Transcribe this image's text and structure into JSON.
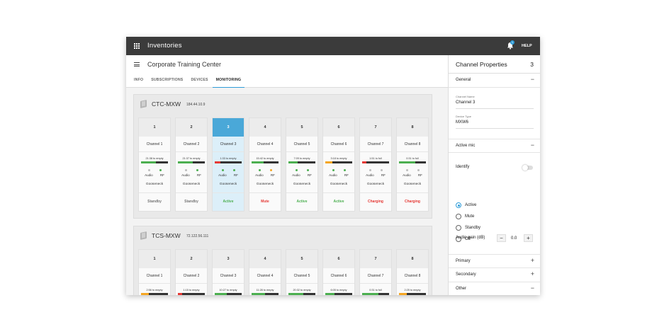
{
  "topbar": {
    "title": "Inventories",
    "notification_count": "1",
    "help_label": "HELP"
  },
  "left": {
    "page_title": "Corporate Training Center",
    "tabs": [
      {
        "label": "INFO",
        "active": false
      },
      {
        "label": "SUBSCRIPTIONS",
        "active": false
      },
      {
        "label": "DEVICES",
        "active": false
      },
      {
        "label": "MONITORING",
        "active": true
      }
    ]
  },
  "devices": [
    {
      "name": "CTC-MXW",
      "ip": "184.44.10.9",
      "channels": [
        {
          "num": "1",
          "name": "Channel 1",
          "battery_text": "21:38 to empty",
          "battery_level": 0.55,
          "battery_color": "#4caf50",
          "audio_dot": "#bdbdbd",
          "rf_dot": "#4caf50",
          "audio_label": "Audio",
          "rf_label": "RF",
          "mic": "Gooseneck",
          "status": "Standby",
          "status_color": "#777777",
          "selected": false
        },
        {
          "num": "2",
          "name": "Channel 2",
          "battery_text": "21:37 to empty",
          "battery_level": 0.55,
          "battery_color": "#4caf50",
          "audio_dot": "#bdbdbd",
          "rf_dot": "#4caf50",
          "audio_label": "Audio",
          "rf_label": "RF",
          "mic": "Gooseneck",
          "status": "Standby",
          "status_color": "#777777",
          "selected": false
        },
        {
          "num": "3",
          "name": "Channel 3",
          "battery_text": "1:33 to empty",
          "battery_level": 0.2,
          "battery_color": "#e53935",
          "audio_dot": "#4caf50",
          "rf_dot": "#4caf50",
          "audio_label": "Audio",
          "rf_label": "RF",
          "mic": "Gooseneck",
          "status": "Active",
          "status_color": "#4caf50",
          "selected": true
        },
        {
          "num": "4",
          "name": "Channel 4",
          "battery_text": "15:42 to empty",
          "battery_level": 0.45,
          "battery_color": "#4caf50",
          "audio_dot": "#4caf50",
          "rf_dot": "#f5a623",
          "audio_label": "Audio",
          "rf_label": "RF",
          "mic": "Gooseneck",
          "status": "Mute",
          "status_color": "#e53935",
          "selected": false
        },
        {
          "num": "5",
          "name": "Channel 5",
          "battery_text": "7:09 to empty",
          "battery_level": 0.35,
          "battery_color": "#4caf50",
          "audio_dot": "#4caf50",
          "rf_dot": "#4caf50",
          "audio_label": "Audio",
          "rf_label": "RF",
          "mic": "Gooseneck",
          "status": "Active",
          "status_color": "#4caf50",
          "selected": false
        },
        {
          "num": "6",
          "name": "Channel 6",
          "battery_text": "3:18 to empty",
          "battery_level": 0.25,
          "battery_color": "#f5a623",
          "audio_dot": "#4caf50",
          "rf_dot": "#4caf50",
          "audio_label": "Audio",
          "rf_label": "RF",
          "mic": "Gooseneck",
          "status": "Active",
          "status_color": "#4caf50",
          "selected": false
        },
        {
          "num": "7",
          "name": "Channel 7",
          "battery_text": "1:51 to full",
          "battery_level": 0.15,
          "battery_color": "#e53935",
          "audio_dot": "#bdbdbd",
          "rf_dot": "#bdbdbd",
          "audio_label": "Audio",
          "rf_label": "RF",
          "mic": "Gooseneck",
          "status": "Charging",
          "status_color": "#e53935",
          "selected": false
        },
        {
          "num": "8",
          "name": "Channel 8",
          "battery_text": "0:31 to full",
          "battery_level": 0.6,
          "battery_color": "#4caf50",
          "audio_dot": "#bdbdbd",
          "rf_dot": "#bdbdbd",
          "audio_label": "Audio",
          "rf_label": "RF",
          "mic": "Gooseneck",
          "status": "Charging",
          "status_color": "#e53935",
          "selected": false
        }
      ]
    },
    {
      "name": "TCS-MXW",
      "ip": "72.122.56.111",
      "channels": [
        {
          "num": "1",
          "name": "Channel 1",
          "battery_text": "2:56 to empty",
          "battery_level": 0.3,
          "battery_color": "#f5a623",
          "selected": false
        },
        {
          "num": "2",
          "name": "Channel 2",
          "battery_text": "1:15 to empty",
          "battery_level": 0.15,
          "battery_color": "#e53935",
          "selected": false
        },
        {
          "num": "3",
          "name": "Channel 3",
          "battery_text": "10:27 to empty",
          "battery_level": 0.45,
          "battery_color": "#4caf50",
          "selected": false
        },
        {
          "num": "4",
          "name": "Channel 4",
          "battery_text": "11:28 to empty",
          "battery_level": 0.5,
          "battery_color": "#4caf50",
          "selected": false
        },
        {
          "num": "5",
          "name": "Channel 5",
          "battery_text": "20:32 to empty",
          "battery_level": 0.55,
          "battery_color": "#4caf50",
          "selected": false
        },
        {
          "num": "6",
          "name": "Channel 6",
          "battery_text": "6:05 to empty",
          "battery_level": 0.35,
          "battery_color": "#4caf50",
          "selected": false
        },
        {
          "num": "7",
          "name": "Channel 7",
          "battery_text": "0:31 to full",
          "battery_level": 0.6,
          "battery_color": "#4caf50",
          "selected": false
        },
        {
          "num": "8",
          "name": "Channel 8",
          "battery_text": "2:25 to empty",
          "battery_level": 0.3,
          "battery_color": "#f5a623",
          "selected": false
        }
      ]
    }
  ],
  "right": {
    "title": "Channel Properties",
    "count": "3",
    "general_label": "General",
    "channel_name_label": "Channel Name",
    "channel_name_value": "Channel 3",
    "device_type_label": "Device Type",
    "device_type_value": "MXW6",
    "active_mic_label": "Active mic",
    "identify_label": "Identify",
    "identify_on": false,
    "radio_options": [
      {
        "label": "Active",
        "checked": true
      },
      {
        "label": "Mute",
        "checked": false
      },
      {
        "label": "Standby",
        "checked": false
      },
      {
        "label": "Off",
        "checked": false
      }
    ],
    "audio_gain_label": "Audio gain (dB)",
    "audio_gain_value": "0.0",
    "minus": "−",
    "plus": "+",
    "primary_label": "Primary",
    "secondary_label": "Secondary",
    "other_label": "Other"
  },
  "colors": {
    "accent": "#2e9cd8",
    "topbar": "#3b3b3b"
  },
  "icons": [
    "apps-grid-icon",
    "bell-icon",
    "menu-icon",
    "device-icon"
  ]
}
